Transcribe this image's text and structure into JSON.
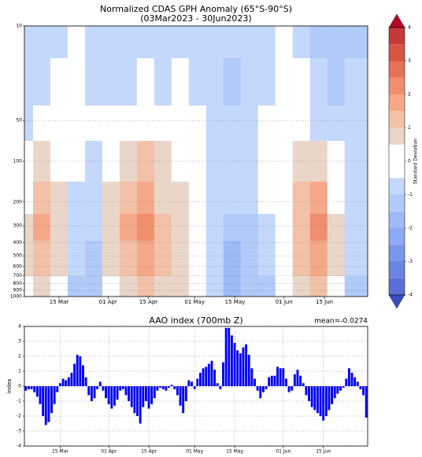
{
  "chart_data": [
    {
      "type": "contour",
      "title": "Normalized CDAS GPH Anomaly (65°S-90°S)",
      "subtitle": "(03Mar2023 - 30Jun2023)",
      "x": [
        0,
        6,
        12,
        18,
        24,
        30,
        36,
        42,
        48,
        54,
        60,
        66,
        72,
        78,
        84,
        90,
        96,
        102,
        108,
        114
      ],
      "levels": [
        10,
        30,
        50,
        100,
        200,
        300,
        500,
        1000
      ],
      "z": [
        [
          -1,
          -1,
          -0.6,
          -0.3,
          -1,
          -1,
          -1,
          -1,
          -1,
          -0.7,
          -0.8,
          -0.8,
          -1,
          -1,
          -0.8,
          -0.4,
          -0.8,
          -1.2,
          -1.5,
          -1.2
        ],
        [
          -1,
          -0.8,
          -0.3,
          -0.2,
          -0.6,
          -0.8,
          -0.6,
          -0.4,
          -0.6,
          -0.3,
          -0.6,
          -1,
          -1.2,
          -1,
          -0.6,
          -0.3,
          -0.5,
          -1,
          -1.4,
          -1
        ],
        [
          -0.8,
          -0.3,
          0,
          0,
          -0.4,
          -0.5,
          0,
          0.2,
          0,
          0,
          -0.3,
          -0.8,
          -1,
          -0.8,
          -0.4,
          0,
          0,
          -0.6,
          -1,
          -0.8
        ],
        [
          -0.2,
          0.6,
          0.3,
          -0.4,
          -0.6,
          0.3,
          0.9,
          1.2,
          0.6,
          0.4,
          -0.2,
          -0.6,
          -0.8,
          -0.6,
          -0.4,
          0.2,
          0.8,
          0.9,
          0.2,
          -0.6
        ],
        [
          0.3,
          1.1,
          0.6,
          -0.6,
          -0.9,
          0.5,
          1.3,
          1.7,
          0.9,
          0.6,
          0,
          -0.7,
          -1,
          -0.9,
          -0.5,
          0.3,
          1.2,
          1.5,
          0.4,
          -0.8
        ],
        [
          0.6,
          1.5,
          0.8,
          -0.8,
          -1,
          0.6,
          1.5,
          2.1,
          1.1,
          0.7,
          0.2,
          -0.8,
          -1.3,
          -1.1,
          -0.7,
          0.3,
          1.4,
          2.1,
          0.6,
          -0.9
        ],
        [
          0.6,
          1.4,
          0.6,
          -1,
          -1.1,
          0.5,
          1.4,
          1.9,
          1.1,
          0.7,
          0.3,
          -0.9,
          -1.6,
          -1.4,
          -0.9,
          0.2,
          1.3,
          1.8,
          0.6,
          -1
        ],
        [
          0.3,
          0.8,
          0.3,
          -1.2,
          -1.2,
          0.3,
          0.9,
          1.2,
          0.8,
          0.6,
          0.2,
          -1,
          -1.9,
          -1.5,
          -1.1,
          0,
          0.8,
          1.0,
          0.3,
          -1.1
        ]
      ],
      "xlim": [
        0,
        119
      ],
      "xticks": [
        {
          "value": 12,
          "label": "15 Mar"
        },
        {
          "value": 29,
          "label": "01 Apr"
        },
        {
          "value": 43,
          "label": "15 Apr"
        },
        {
          "value": 59,
          "label": "01 May"
        },
        {
          "value": 73,
          "label": "15 May"
        },
        {
          "value": 90,
          "label": "01 Jun"
        },
        {
          "value": 104,
          "label": "15 Jun"
        }
      ],
      "ylim": [
        1000,
        10
      ],
      "yscale": "log",
      "yticks": [
        10,
        50,
        100,
        200,
        300,
        400,
        500,
        600,
        700,
        800,
        900,
        1000
      ],
      "grid": true,
      "colorbar": {
        "label": "Standard Deviation",
        "ticks": [
          -4,
          -3,
          -2,
          -1,
          0,
          1,
          2,
          3,
          4
        ],
        "levels": [
          -4,
          -3.5,
          -3,
          -2.5,
          -2,
          -1.5,
          -1,
          -0.5,
          0,
          0.5,
          1,
          1.5,
          2,
          2.5,
          3,
          3.5,
          4
        ],
        "colors": [
          "#5a6fd6",
          "#6a84e0",
          "#7b96ea",
          "#8ca9f2",
          "#9dbbf7",
          "#b0cbfa",
          "#c4d8fb",
          "#ffffff",
          "#ffffff",
          "#ead6c8",
          "#f3c1a8",
          "#f5a98a",
          "#ef8f6d",
          "#e47255",
          "#d65644",
          "#c6393a"
        ],
        "over_color": "#b40426",
        "under_color": "#3b4cc0"
      }
    },
    {
      "type": "bar",
      "title": "AAO index (700mb Z)",
      "annotation": "mean=-0.0274",
      "ylabel": "index",
      "color": "#0000ff",
      "values": [
        -0.3,
        -0.2,
        -0.2,
        -0.4,
        -0.7,
        -1.2,
        -2.0,
        -2.6,
        -2.4,
        -1.8,
        -1.2,
        -0.4,
        0.2,
        0.5,
        0.4,
        0.6,
        0.9,
        1.5,
        2.1,
        2.0,
        1.4,
        0.6,
        -0.6,
        -1.0,
        -0.8,
        -0.2,
        0.3,
        -0.3,
        -0.8,
        -1.2,
        -1.5,
        -1.3,
        -0.9,
        -0.3,
        -0.2,
        -0.6,
        -1.0,
        -1.4,
        -1.8,
        -2.0,
        -2.5,
        -1.4,
        -1.0,
        -1.5,
        -1.2,
        -0.8,
        -0.3,
        -0.1,
        -0.2,
        -0.3,
        -0.1,
        0.1,
        -0.2,
        -0.6,
        -1.3,
        -1.8,
        -1.0,
        0.4,
        0.3,
        -0.2,
        0.5,
        0.9,
        1.2,
        1.3,
        1.5,
        1.7,
        1.1,
        0.2,
        -0.2,
        1.6,
        3.9,
        3.9,
        3.4,
        2.9,
        2.4,
        2.2,
        2.6,
        2.8,
        2.1,
        1.2,
        0.5,
        -0.3,
        -0.8,
        -0.4,
        -0.2,
        0.6,
        0.7,
        0.7,
        1.3,
        1.2,
        1.2,
        0.5,
        -0.4,
        -0.3,
        0.8,
        1.1,
        0.7,
        0.2,
        -0.6,
        -1.0,
        -1.4,
        -1.6,
        -1.8,
        -2.0,
        -2.3,
        -2.0,
        -1.6,
        -1.2,
        -0.8,
        -0.5,
        -0.3,
        -0.1,
        0.5,
        1.2,
        0.9,
        0.6,
        0.3,
        -0.2,
        -0.6,
        -2.1
      ],
      "xlim": [
        -0.5,
        119.5
      ],
      "xticks": [
        {
          "value": 12,
          "label": "15 Mar"
        },
        {
          "value": 29,
          "label": "01 Apr"
        },
        {
          "value": 43,
          "label": "15 Apr"
        },
        {
          "value": 59,
          "label": "01 May"
        },
        {
          "value": 73,
          "label": "15 May"
        },
        {
          "value": 90,
          "label": "01 Jun"
        },
        {
          "value": 104,
          "label": "15 Jun"
        }
      ],
      "ylim": [
        -4,
        4
      ],
      "yticks": [
        -4,
        -3,
        -2,
        -1,
        0,
        1,
        2,
        3,
        4
      ],
      "grid": true
    }
  ]
}
